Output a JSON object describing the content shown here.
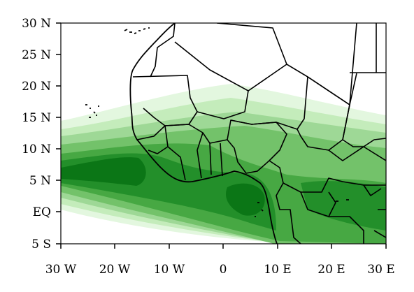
{
  "map": {
    "y_tick_labels": [
      "30 N",
      "25 N",
      "20 N",
      "15 N",
      "10 N",
      "5 N",
      "EQ",
      "5 S"
    ],
    "x_tick_labels": [
      "30 W",
      "20 W",
      "10 W",
      "0",
      "10 E",
      "20 E",
      "30 E"
    ],
    "lon_range": [
      -30,
      30
    ],
    "lat_range": [
      -5,
      30
    ],
    "shading_colors": [
      "#e3f7df",
      "#c4ecbb",
      "#9ed896",
      "#73c26a",
      "#47a843",
      "#238f2a",
      "#0b7616"
    ]
  }
}
